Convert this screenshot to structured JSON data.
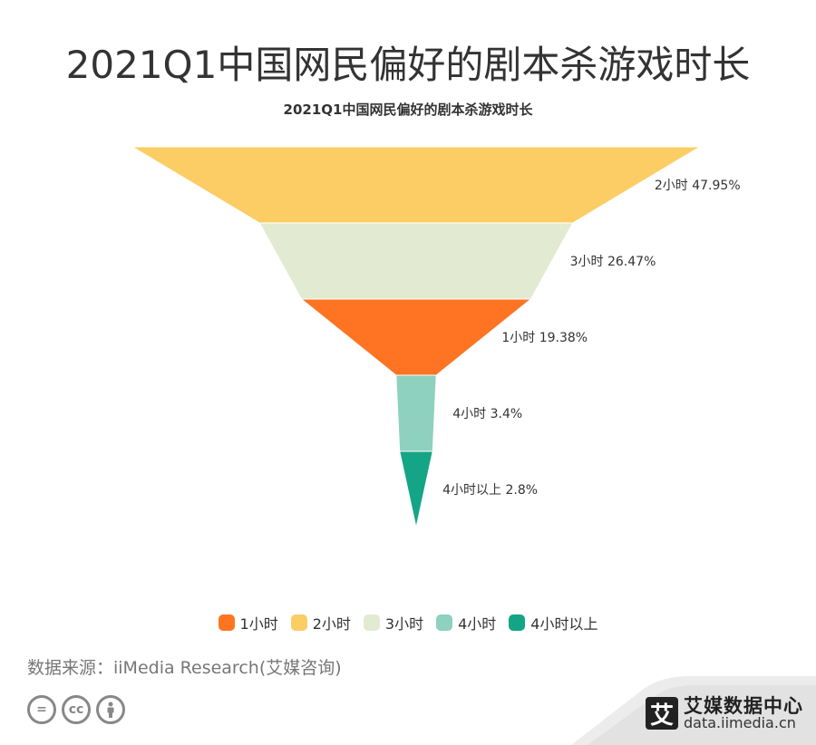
{
  "page": {
    "title": "2021Q1中国网民偏好的剧本杀游戏时长",
    "source": "数据来源：iiMedia Research(艾媒咨询)",
    "brand_name": "艾媒数据中心",
    "brand_url": "data.iimedia.cn",
    "brand_logo_char": "艾",
    "cc_icons": [
      "=",
      "cc",
      "person"
    ]
  },
  "chart_data": {
    "type": "funnel",
    "title": "2021Q1中国网民偏好的剧本杀游戏时长",
    "stages": [
      {
        "name": "2小时",
        "value": 47.95,
        "label": "2小时 47.95%",
        "color": "#FBCD64"
      },
      {
        "name": "3小时",
        "value": 26.47,
        "label": "3小时 26.47%",
        "color": "#E2EBD2"
      },
      {
        "name": "1小时",
        "value": 19.38,
        "label": "1小时 19.38%",
        "color": "#FE7423"
      },
      {
        "name": "4小时",
        "value": 3.4,
        "label": "4小时 3.4%",
        "color": "#8ED1BE"
      },
      {
        "name": "4小时以上",
        "value": 2.8,
        "label": "4小时以上 2.8%",
        "color": "#14A586"
      }
    ],
    "legend": [
      {
        "name": "1小时",
        "color": "#FE7423"
      },
      {
        "name": "2小时",
        "color": "#FBCD64"
      },
      {
        "name": "3小时",
        "color": "#E2EBD2"
      },
      {
        "name": "4小时",
        "color": "#8ED1BE"
      },
      {
        "name": "4小时以上",
        "color": "#14A586"
      }
    ],
    "legend_position": "bottom"
  }
}
